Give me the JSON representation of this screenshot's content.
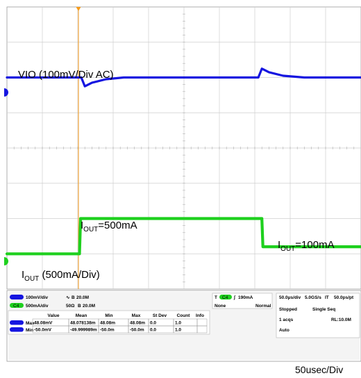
{
  "chart_data": {
    "type": "line",
    "title": "",
    "xlabel": "",
    "ylabel": "",
    "time_scale": "50usec/Div",
    "grid": true,
    "divisions": {
      "x": 10,
      "y": 8
    },
    "series": [
      {
        "name": "VIO (100mV/Div  AC)",
        "color": "#1515e0",
        "x_div": [
          0,
          2.1,
          2.2,
          2.4,
          2.8,
          3.3,
          7.1,
          7.2,
          7.4,
          7.8,
          8.4,
          10
        ],
        "y_div": [
          6.0,
          6.0,
          5.75,
          5.85,
          5.95,
          6.0,
          6.0,
          6.25,
          6.15,
          6.05,
          6.0,
          6.0
        ]
      },
      {
        "name": "IOUT (500mA/Div)",
        "color": "#1ed01e",
        "x_div": [
          0,
          2.05,
          2.08,
          7.2,
          7.23,
          10
        ],
        "y_div": [
          1.0,
          1.0,
          2.0,
          2.0,
          1.2,
          1.2
        ]
      }
    ],
    "annotations": [
      {
        "base": "I",
        "sub": "OUT",
        "rest": "=500mA"
      },
      {
        "base": "I",
        "sub": "OUT",
        "rest": "=100mA"
      },
      {
        "base": "I",
        "sub": "OUT",
        "rest": " (500mA/Div)"
      }
    ]
  },
  "channels": {
    "ch1": {
      "scale": "100mV/div",
      "coupling": "20.0M",
      "tag": ""
    },
    "ch2": {
      "scale": "500mA/div",
      "impedance": "50Ω",
      "coupling": "20.0M",
      "tag": "C4"
    }
  },
  "trigger": {
    "source": "C4",
    "level": "190mA",
    "source_label": "None",
    "mode": "Normal",
    "marker": "T"
  },
  "acquisition": {
    "timebase": "50.0µs/div",
    "rate": "5.0GS/s",
    "it": "IT",
    "resolution": "50.0ps/pt",
    "state": "Stopped",
    "seq": "Single Seq",
    "acqs": "1 acqs",
    "rl": "RL:10.0M",
    "mode": "Auto"
  },
  "measurements": {
    "headers": [
      "Value",
      "Mean",
      "Min",
      "Max",
      "St Dev",
      "Count",
      "Info"
    ],
    "rows": [
      {
        "label": "Max",
        "cells": [
          "48.08mV",
          "48.078138m",
          "48.08m",
          "48.08m",
          "0.0",
          "1.0",
          ""
        ]
      },
      {
        "label": "Min",
        "cells": [
          "-50.0mV",
          "-49.999989m",
          "-50.0m",
          "-50.0m",
          "0.0",
          "1.0",
          ""
        ]
      }
    ]
  },
  "footer": {
    "time_per_div": "50usec/Div"
  },
  "colors": {
    "ch1": "#1515e0",
    "ch2": "#1ed01e",
    "trigger": "#f59a1a"
  }
}
